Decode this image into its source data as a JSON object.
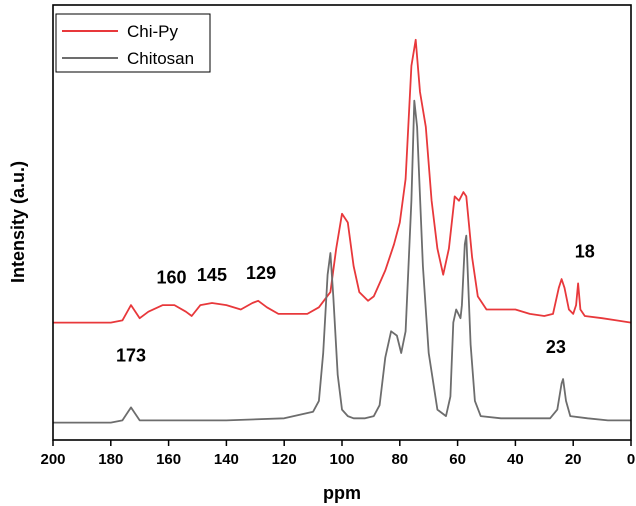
{
  "chart_data": {
    "type": "line",
    "xlabel": "ppm",
    "ylabel": "Intensity (a.u.)",
    "xlim": [
      200,
      0
    ],
    "x_reversed": true,
    "x_ticks": [
      "200",
      "180",
      "160",
      "140",
      "120",
      "100",
      "80",
      "60",
      "40",
      "20",
      "0"
    ],
    "y_ticks_shown": false,
    "grid": false,
    "legend_position": "top-left",
    "series": [
      {
        "name": "Chi-Py",
        "color": "#e8383b",
        "points": [
          [
            200,
            0.27
          ],
          [
            180,
            0.27
          ],
          [
            176,
            0.275
          ],
          [
            173,
            0.31
          ],
          [
            170,
            0.28
          ],
          [
            167,
            0.295
          ],
          [
            162,
            0.31
          ],
          [
            158,
            0.31
          ],
          [
            154,
            0.295
          ],
          [
            152,
            0.285
          ],
          [
            149,
            0.31
          ],
          [
            145,
            0.315
          ],
          [
            140,
            0.31
          ],
          [
            135,
            0.3
          ],
          [
            131,
            0.315
          ],
          [
            129,
            0.32
          ],
          [
            126,
            0.305
          ],
          [
            122,
            0.29
          ],
          [
            117,
            0.29
          ],
          [
            112,
            0.29
          ],
          [
            108,
            0.305
          ],
          [
            104,
            0.34
          ],
          [
            102,
            0.44
          ],
          [
            100,
            0.52
          ],
          [
            98,
            0.5
          ],
          [
            96,
            0.4
          ],
          [
            94,
            0.34
          ],
          [
            91,
            0.32
          ],
          [
            89,
            0.33
          ],
          [
            85,
            0.39
          ],
          [
            82,
            0.45
          ],
          [
            80,
            0.5
          ],
          [
            78,
            0.6
          ],
          [
            76,
            0.86
          ],
          [
            74.5,
            0.92
          ],
          [
            73,
            0.8
          ],
          [
            71,
            0.72
          ],
          [
            69,
            0.55
          ],
          [
            67,
            0.44
          ],
          [
            65,
            0.38
          ],
          [
            63,
            0.44
          ],
          [
            61,
            0.56
          ],
          [
            59.5,
            0.55
          ],
          [
            58,
            0.57
          ],
          [
            57,
            0.56
          ],
          [
            55,
            0.42
          ],
          [
            53,
            0.33
          ],
          [
            50,
            0.3
          ],
          [
            45,
            0.3
          ],
          [
            40,
            0.3
          ],
          [
            35,
            0.29
          ],
          [
            30,
            0.285
          ],
          [
            27,
            0.29
          ],
          [
            25,
            0.35
          ],
          [
            24,
            0.37
          ],
          [
            23,
            0.35
          ],
          [
            21.5,
            0.3
          ],
          [
            20,
            0.29
          ],
          [
            19,
            0.31
          ],
          [
            18.3,
            0.36
          ],
          [
            17.5,
            0.3
          ],
          [
            16,
            0.285
          ],
          [
            10,
            0.28
          ],
          [
            5,
            0.275
          ],
          [
            0,
            0.27
          ]
        ]
      },
      {
        "name": "Chitosan",
        "color": "#6d6d6d",
        "points": [
          [
            200,
            0.04
          ],
          [
            180,
            0.04
          ],
          [
            176,
            0.045
          ],
          [
            174,
            0.065
          ],
          [
            173,
            0.075
          ],
          [
            172,
            0.065
          ],
          [
            170,
            0.045
          ],
          [
            160,
            0.045
          ],
          [
            140,
            0.045
          ],
          [
            120,
            0.05
          ],
          [
            110,
            0.065
          ],
          [
            108,
            0.09
          ],
          [
            106.5,
            0.2
          ],
          [
            105,
            0.38
          ],
          [
            104,
            0.43
          ],
          [
            103,
            0.33
          ],
          [
            101.5,
            0.15
          ],
          [
            100,
            0.07
          ],
          [
            98,
            0.055
          ],
          [
            96,
            0.05
          ],
          [
            92,
            0.05
          ],
          [
            89,
            0.055
          ],
          [
            87,
            0.08
          ],
          [
            85,
            0.19
          ],
          [
            83,
            0.25
          ],
          [
            81,
            0.24
          ],
          [
            79.5,
            0.2
          ],
          [
            78,
            0.25
          ],
          [
            76,
            0.55
          ],
          [
            75,
            0.78
          ],
          [
            74,
            0.72
          ],
          [
            72,
            0.4
          ],
          [
            70,
            0.2
          ],
          [
            67,
            0.07
          ],
          [
            64,
            0.055
          ],
          [
            62.5,
            0.1
          ],
          [
            61.5,
            0.27
          ],
          [
            60.5,
            0.3
          ],
          [
            59,
            0.28
          ],
          [
            58.5,
            0.31
          ],
          [
            57.5,
            0.45
          ],
          [
            57,
            0.47
          ],
          [
            55.5,
            0.22
          ],
          [
            54,
            0.09
          ],
          [
            52,
            0.055
          ],
          [
            45,
            0.05
          ],
          [
            35,
            0.05
          ],
          [
            28,
            0.05
          ],
          [
            25.5,
            0.07
          ],
          [
            24,
            0.13
          ],
          [
            23.5,
            0.14
          ],
          [
            22.5,
            0.09
          ],
          [
            21,
            0.055
          ],
          [
            15,
            0.05
          ],
          [
            8,
            0.045
          ],
          [
            0,
            0.045
          ]
        ]
      }
    ],
    "annotations": [
      {
        "text": "173",
        "x": 173,
        "y": 0.18
      },
      {
        "text": "160",
        "x": 159,
        "y": 0.36
      },
      {
        "text": "145",
        "x": 145,
        "y": 0.365
      },
      {
        "text": "129",
        "x": 128,
        "y": 0.37
      },
      {
        "text": "23",
        "x": 26,
        "y": 0.2
      },
      {
        "text": "18",
        "x": 16,
        "y": 0.42
      }
    ]
  }
}
